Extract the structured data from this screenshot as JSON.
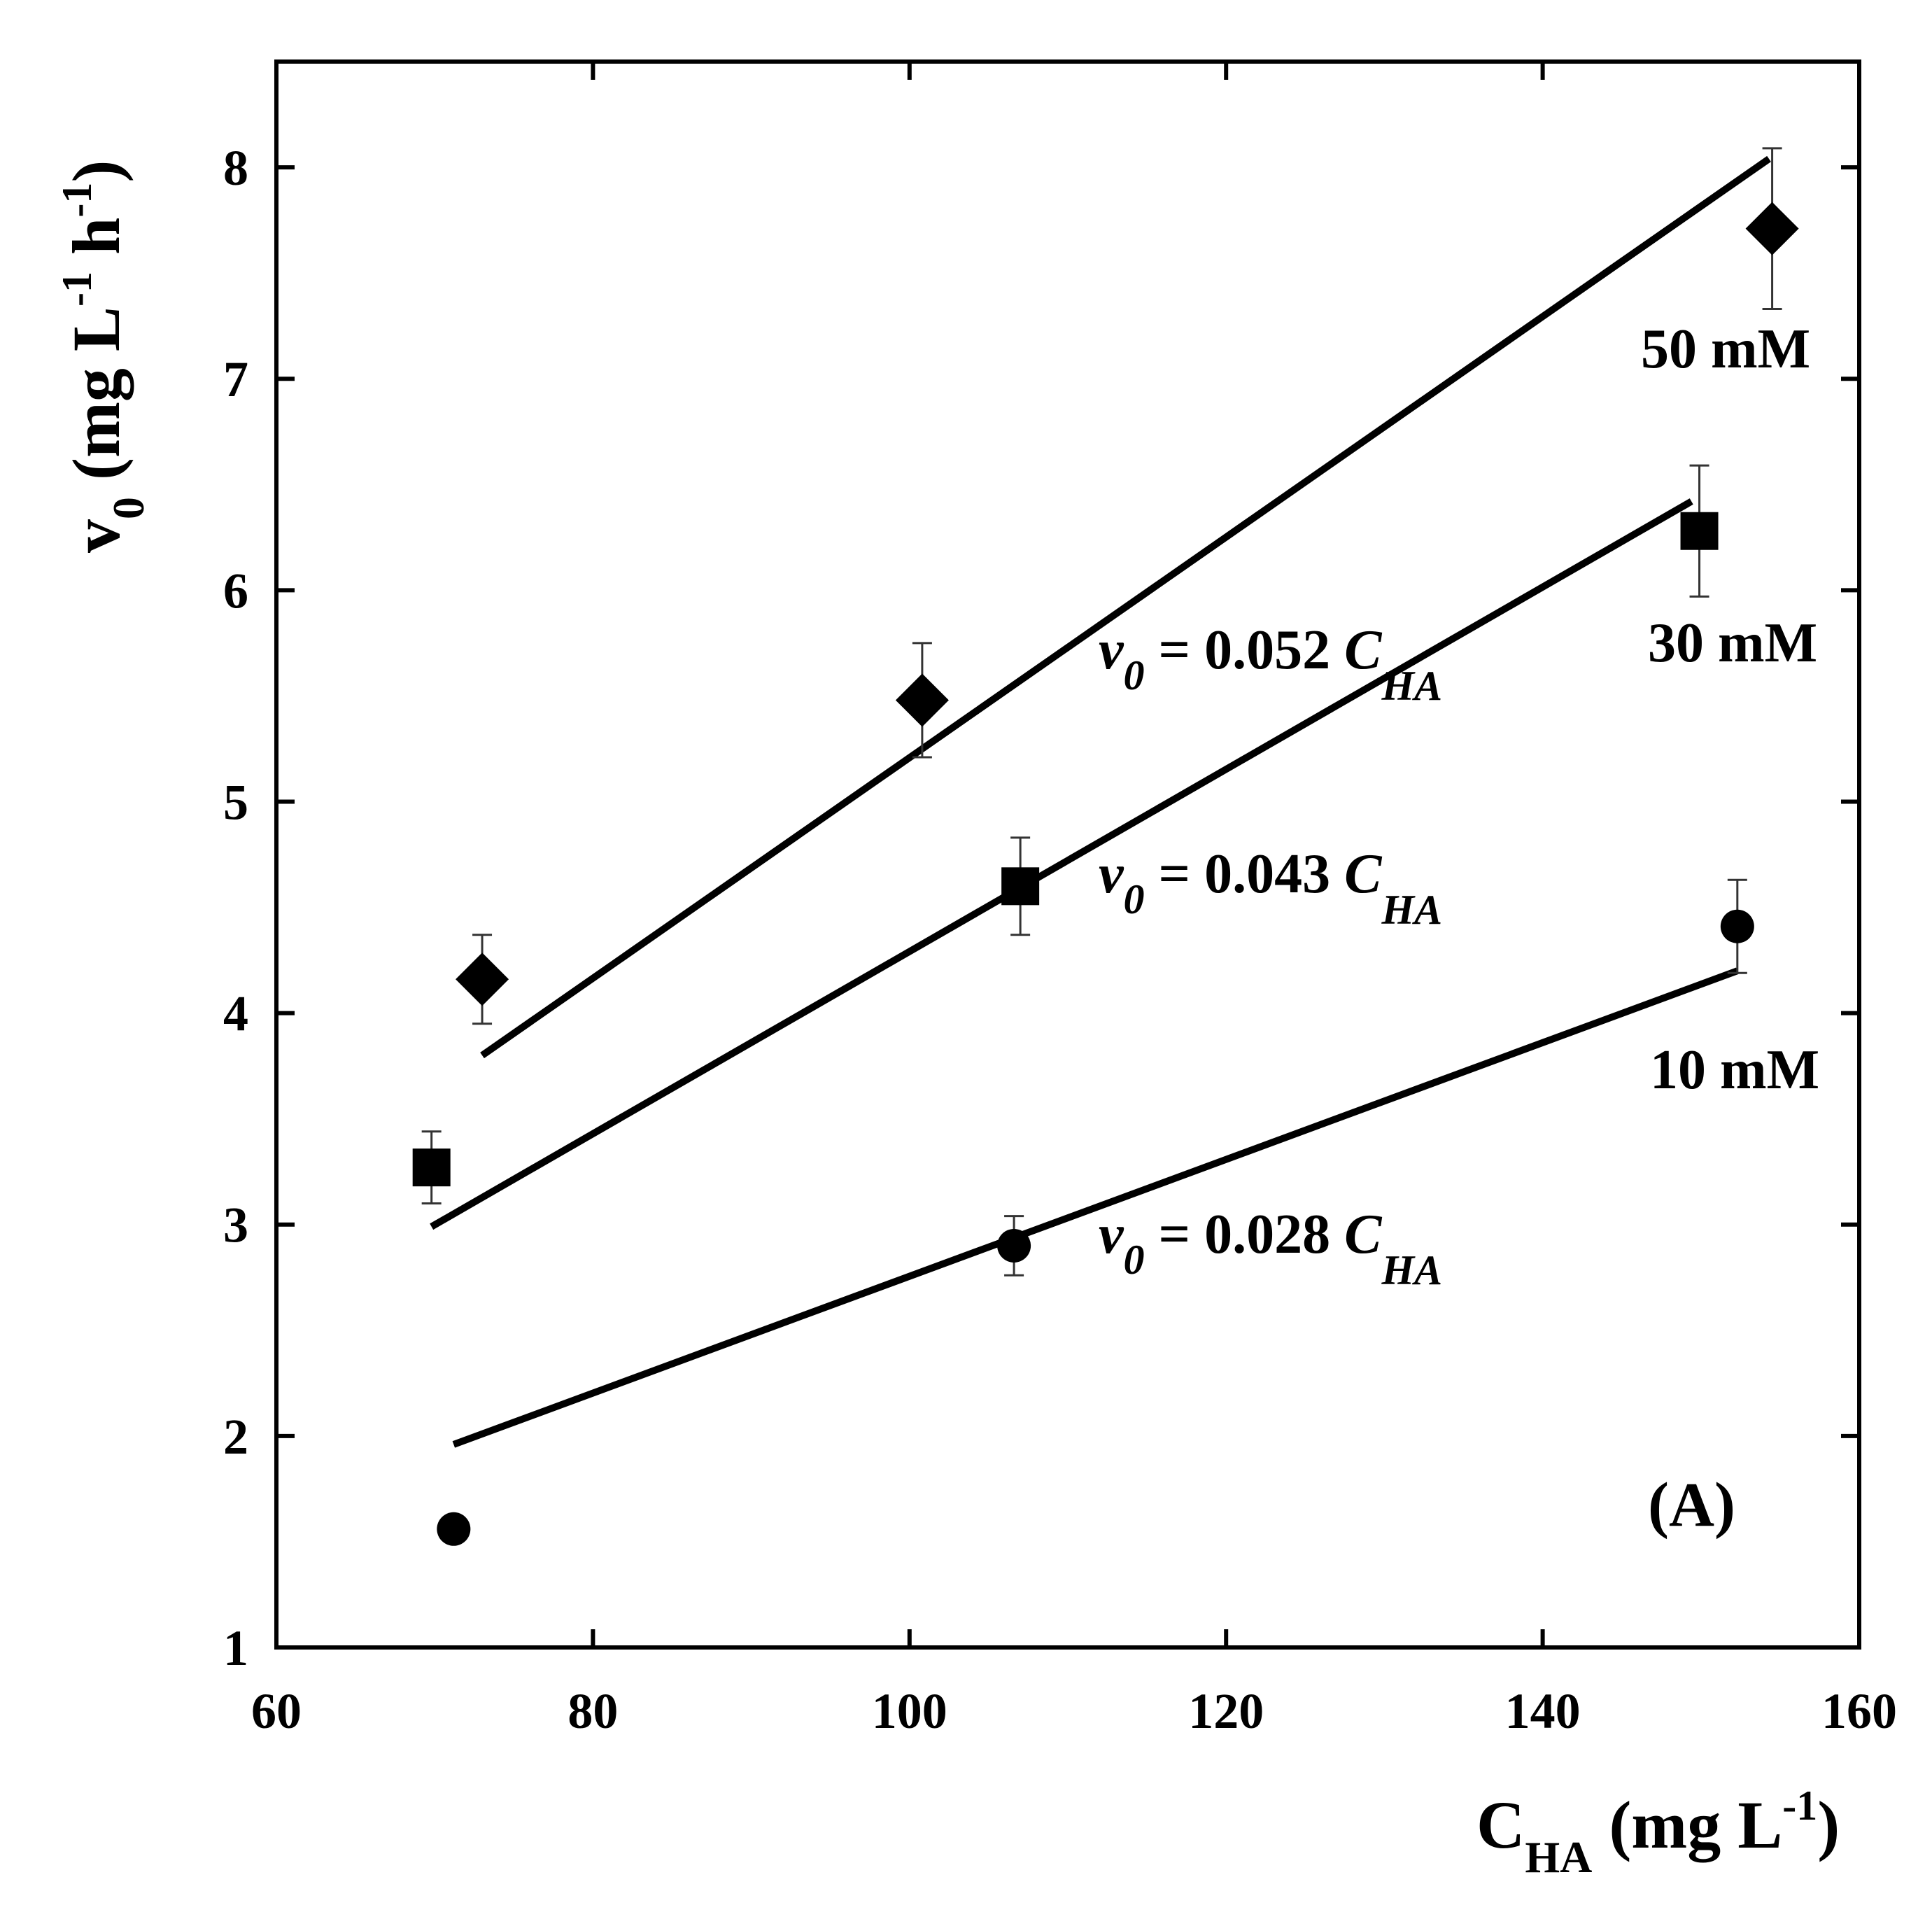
{
  "chart_data": {
    "type": "scatter",
    "panel_label": "(A)",
    "xlabel": {
      "main": "C",
      "sub": "HA",
      "units_open": " (mg L",
      "sup": "-1",
      "units_close": ")"
    },
    "ylabel": {
      "main": "v",
      "sub": "0",
      "units_open": " (mg L",
      "sup1": "-1",
      "mid": " h",
      "sup2": "-1",
      "units_close": ")"
    },
    "xlim": [
      60,
      160
    ],
    "ylim": [
      1,
      8.5
    ],
    "xticks": [
      60,
      80,
      100,
      120,
      140,
      160
    ],
    "yticks": [
      1,
      2,
      3,
      4,
      5,
      6,
      7,
      8
    ],
    "xtick_labels": [
      "60",
      "80",
      "100",
      "120",
      "140",
      "160"
    ],
    "ytick_labels": [
      "1",
      "2",
      "3",
      "4",
      "5",
      "6",
      "7",
      "8"
    ],
    "series": [
      {
        "name": "50 mM",
        "marker": "diamond",
        "x": [
          73.0,
          100.8,
          154.5
        ],
        "y": [
          4.16,
          5.48,
          7.71
        ],
        "err": [
          0.21,
          0.27,
          0.38
        ],
        "fit": {
          "x": [
            73.0,
            154.3
          ],
          "y": [
            3.8,
            8.04
          ]
        },
        "equation": {
          "var": "v",
          "var_sub": "0",
          "text": " = 0.052 ",
          "coef_var": "C",
          "coef_sub": "HA"
        }
      },
      {
        "name": "30 mM",
        "marker": "square",
        "x": [
          69.8,
          107.0,
          149.9
        ],
        "y": [
          3.27,
          4.6,
          6.28
        ],
        "err": [
          0.17,
          0.23,
          0.31
        ],
        "fit": {
          "x": [
            69.8,
            149.4
          ],
          "y": [
            2.99,
            6.42
          ]
        },
        "equation": {
          "var": "v",
          "var_sub": "0",
          "text": " = 0.043 ",
          "coef_var": "C",
          "coef_sub": "HA"
        }
      },
      {
        "name": "10 mM",
        "marker": "circle",
        "x": [
          71.2,
          106.6,
          152.3
        ],
        "y": [
          1.56,
          2.9,
          4.41
        ],
        "err": [
          0.05,
          0.14,
          0.22
        ],
        "fit": {
          "x": [
            71.2,
            152.3
          ],
          "y": [
            1.96,
            4.2
          ]
        },
        "equation": {
          "var": "v",
          "var_sub": "0",
          "text": " = 0.028 ",
          "coef_var": "C",
          "coef_sub": "HA"
        }
      }
    ]
  }
}
